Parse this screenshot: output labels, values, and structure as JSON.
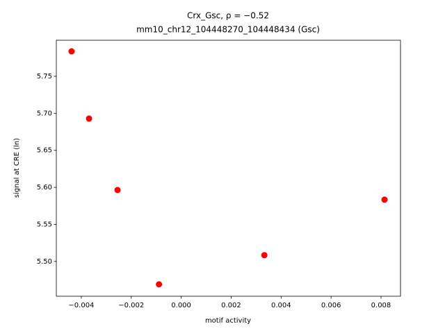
{
  "chart_data": {
    "type": "scatter",
    "title": "Crx_Gsc, ρ = −0.52",
    "subtitle": "mm10_chr12_104448270_104448434 (Gsc)",
    "x_label": "motif activity",
    "y_label": "signal at CRE (ln)",
    "color": "#ff0000",
    "x": [
      -0.00439,
      -0.00369,
      -0.00255,
      -0.00089,
      0.00333,
      0.00814
    ],
    "values": [
      5.7837,
      5.6929,
      5.5964,
      5.4691,
      5.5084,
      5.5834
    ],
    "xlim": [
      -0.005,
      0.00878
    ],
    "ylim": [
      5.453,
      5.7987
    ],
    "xticks": [
      {
        "value": -0.004,
        "label": "−0.004"
      },
      {
        "value": -0.002,
        "label": "−0.002"
      },
      {
        "value": 0,
        "label": "0.000"
      },
      0.002,
      0.004,
      0.006,
      0.008
    ],
    "yticks": [
      {
        "value": 5.5,
        "label": "5.50"
      },
      5.55,
      {
        "value": 5.6,
        "label": "5.60"
      },
      5.65,
      {
        "value": 5.7,
        "label": "5.70"
      },
      5.75
    ]
  }
}
